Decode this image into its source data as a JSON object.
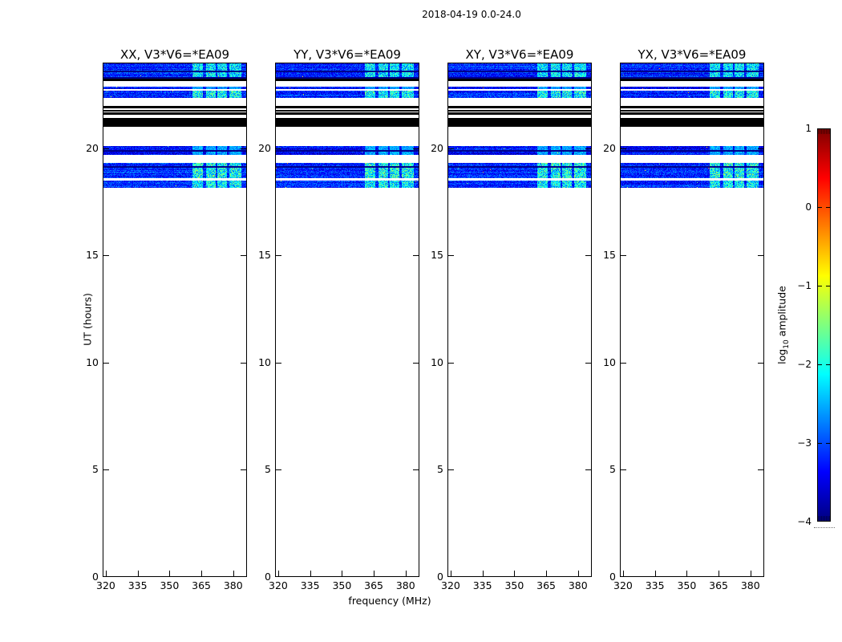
{
  "figure": {
    "suptitle": "2018-04-19 0.0-24.0",
    "xlabel": "frequency (MHz)",
    "ylabel": "UT (hours)",
    "cb_label": {
      "prefix": "log",
      "sub": "10",
      "suffix": " amplitude"
    }
  },
  "panels": [
    {
      "title": "XX, V3*V6=*EA09"
    },
    {
      "title": "YY, V3*V6=*EA09"
    },
    {
      "title": "XY, V3*V6=*EA09"
    },
    {
      "title": "YX, V3*V6=*EA09"
    }
  ],
  "axes": {
    "x_tick_labels": [
      "320",
      "335",
      "350",
      "365",
      "380"
    ],
    "y_tick_labels": [
      "0",
      "5",
      "10",
      "15",
      "20"
    ]
  },
  "colorbar": {
    "tick_labels": [
      "1",
      "0",
      "−1",
      "−2",
      "−3",
      "−4"
    ],
    "tick_values": [
      1,
      0,
      -1,
      -2,
      -3,
      -4
    ],
    "range": [
      -4,
      1
    ],
    "colormap": "jet"
  },
  "chart_data": {
    "type": "heatmap",
    "title": "2018-04-19 0.0-24.0",
    "xlabel": "frequency (MHz)",
    "ylabel": "UT (hours)",
    "x_range_mhz": [
      318.5,
      386.5
    ],
    "x_ticks_mhz": [
      320,
      335,
      350,
      365,
      380
    ],
    "y_range_hours": [
      0,
      24
    ],
    "y_ticks_hours": [
      0,
      5,
      10,
      15,
      20
    ],
    "colormap": "jet",
    "color_range_log10_amplitude": [
      -4,
      1
    ],
    "panels": [
      "XX, V3*V6=*EA09",
      "YY, V3*V6=*EA09",
      "XY, V3*V6=*EA09",
      "YX, V3*V6=*EA09"
    ],
    "note": "Dynamic spectra for baseline V3*V6 (antenna EA09), four polarization products. Data present only between ~18.2 and 24.0 UT; remainder of day blank. Bright RFI stripes near 361-384 MHz; solid black rows are flagged scans.",
    "bands": [
      {
        "ut_start": 23.25,
        "ut_end": 23.96,
        "kind": "noise",
        "level_log10": -3.3,
        "bright": 1.0,
        "dark_lines_ut": [
          23.63,
          23.33
        ]
      },
      {
        "ut_start": 23.14,
        "ut_end": 23.25,
        "kind": "flagged-black"
      },
      {
        "ut_start": 22.76,
        "ut_end": 22.88,
        "kind": "noise",
        "level_log10": -3.5,
        "bright": 0.45
      },
      {
        "ut_start": 22.35,
        "ut_end": 22.7,
        "kind": "noise",
        "level_log10": -3.3,
        "bright": 1.15
      },
      {
        "ut_start": 21.86,
        "ut_end": 21.98,
        "kind": "flagged-black"
      },
      {
        "ut_start": 21.71,
        "ut_end": 21.79,
        "kind": "flagged-black"
      },
      {
        "ut_start": 21.58,
        "ut_end": 21.66,
        "kind": "flagged-black"
      },
      {
        "ut_start": 21.0,
        "ut_end": 21.42,
        "kind": "flagged-black"
      },
      {
        "ut_start": 19.69,
        "ut_end": 20.11,
        "kind": "noise",
        "level_log10": -3.45,
        "bright": 0.5,
        "dark_lines_ut": [
          19.92
        ]
      },
      {
        "ut_start": 18.61,
        "ut_end": 19.32,
        "kind": "noise",
        "level_log10": -3.3,
        "bright": 1.25,
        "dark_lines_ut": [
          19.16
        ]
      },
      {
        "ut_start": 18.16,
        "ut_end": 18.48,
        "kind": "noise",
        "level_log10": -3.3,
        "bright": 1.1
      }
    ],
    "rfi_bright_columns_mhz": [
      [
        360.5,
        365.5
      ],
      [
        367.0,
        371.5
      ],
      [
        372.5,
        377.0
      ],
      [
        378.0,
        383.5
      ]
    ]
  }
}
